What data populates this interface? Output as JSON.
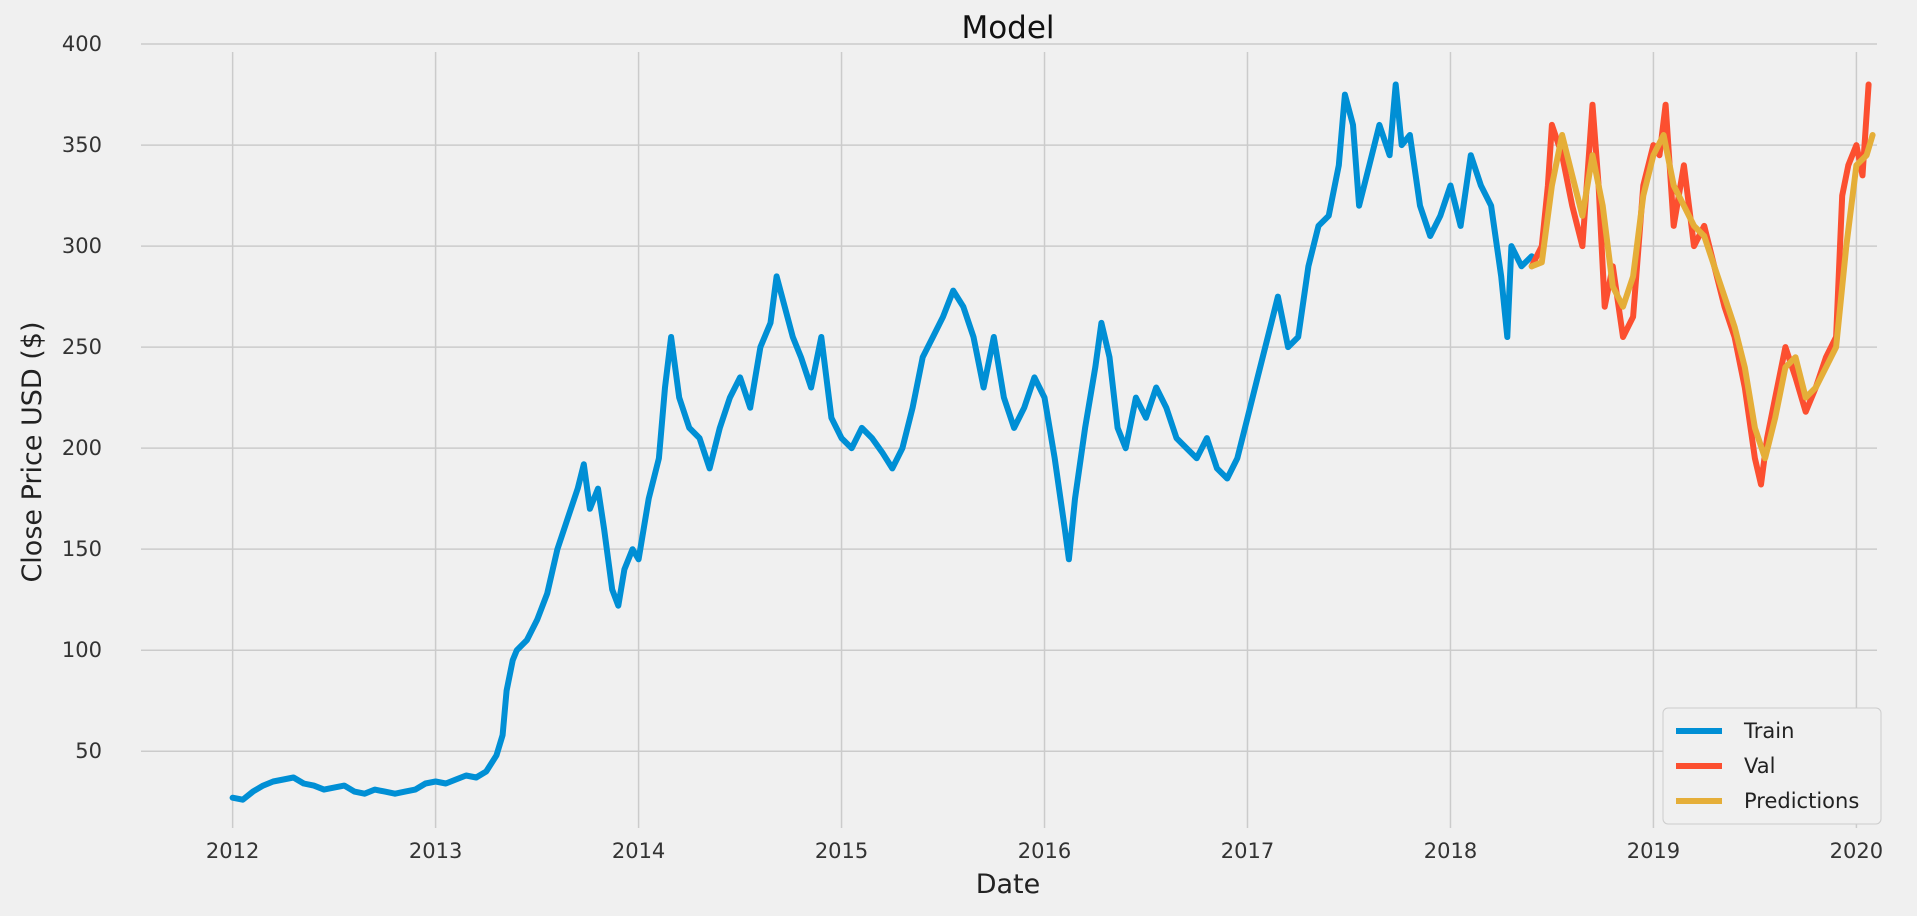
{
  "chart_data": {
    "type": "line",
    "title": "Model",
    "xlabel": "Date",
    "ylabel": "Close Price USD ($)",
    "xlim": [
      2011.45,
      2020.2
    ],
    "ylim": [
      12,
      403
    ],
    "x_ticks": [
      2012,
      2013,
      2014,
      2015,
      2016,
      2017,
      2018,
      2019,
      2020
    ],
    "x_tick_labels": [
      "2012",
      "2013",
      "2014",
      "2015",
      "2016",
      "2017",
      "2018",
      "2019",
      "2020"
    ],
    "y_ticks": [
      50,
      100,
      150,
      200,
      250,
      300,
      350,
      400
    ],
    "y_tick_labels": [
      "50",
      "100",
      "150",
      "200",
      "250",
      "300",
      "350",
      "400"
    ],
    "grid": true,
    "legend": "lower-right",
    "series": [
      {
        "name": "Train",
        "color": "#008fd5",
        "points": [
          [
            2012.0,
            27
          ],
          [
            2012.05,
            26
          ],
          [
            2012.1,
            30
          ],
          [
            2012.15,
            33
          ],
          [
            2012.2,
            35
          ],
          [
            2012.25,
            36
          ],
          [
            2012.3,
            37
          ],
          [
            2012.35,
            34
          ],
          [
            2012.4,
            33
          ],
          [
            2012.45,
            31
          ],
          [
            2012.5,
            32
          ],
          [
            2012.55,
            33
          ],
          [
            2012.6,
            30
          ],
          [
            2012.65,
            29
          ],
          [
            2012.7,
            31
          ],
          [
            2012.75,
            30
          ],
          [
            2012.8,
            29
          ],
          [
            2012.85,
            30
          ],
          [
            2012.9,
            31
          ],
          [
            2012.95,
            34
          ],
          [
            2013.0,
            35
          ],
          [
            2013.05,
            34
          ],
          [
            2013.1,
            36
          ],
          [
            2013.15,
            38
          ],
          [
            2013.2,
            37
          ],
          [
            2013.25,
            40
          ],
          [
            2013.3,
            48
          ],
          [
            2013.33,
            58
          ],
          [
            2013.35,
            80
          ],
          [
            2013.38,
            95
          ],
          [
            2013.4,
            100
          ],
          [
            2013.45,
            105
          ],
          [
            2013.5,
            115
          ],
          [
            2013.55,
            128
          ],
          [
            2013.6,
            150
          ],
          [
            2013.65,
            165
          ],
          [
            2013.7,
            180
          ],
          [
            2013.73,
            192
          ],
          [
            2013.76,
            170
          ],
          [
            2013.8,
            180
          ],
          [
            2013.83,
            160
          ],
          [
            2013.87,
            130
          ],
          [
            2013.9,
            122
          ],
          [
            2013.93,
            140
          ],
          [
            2013.97,
            150
          ],
          [
            2014.0,
            145
          ],
          [
            2014.05,
            175
          ],
          [
            2014.1,
            195
          ],
          [
            2014.13,
            230
          ],
          [
            2014.16,
            255
          ],
          [
            2014.2,
            225
          ],
          [
            2014.25,
            210
          ],
          [
            2014.3,
            205
          ],
          [
            2014.35,
            190
          ],
          [
            2014.4,
            210
          ],
          [
            2014.45,
            225
          ],
          [
            2014.5,
            235
          ],
          [
            2014.55,
            220
          ],
          [
            2014.6,
            250
          ],
          [
            2014.65,
            262
          ],
          [
            2014.68,
            285
          ],
          [
            2014.72,
            270
          ],
          [
            2014.76,
            255
          ],
          [
            2014.8,
            245
          ],
          [
            2014.85,
            230
          ],
          [
            2014.9,
            255
          ],
          [
            2014.95,
            215
          ],
          [
            2015.0,
            205
          ],
          [
            2015.05,
            200
          ],
          [
            2015.1,
            210
          ],
          [
            2015.15,
            205
          ],
          [
            2015.2,
            198
          ],
          [
            2015.25,
            190
          ],
          [
            2015.3,
            200
          ],
          [
            2015.35,
            220
          ],
          [
            2015.4,
            245
          ],
          [
            2015.45,
            255
          ],
          [
            2015.5,
            265
          ],
          [
            2015.55,
            278
          ],
          [
            2015.6,
            270
          ],
          [
            2015.65,
            255
          ],
          [
            2015.7,
            230
          ],
          [
            2015.75,
            255
          ],
          [
            2015.8,
            225
          ],
          [
            2015.85,
            210
          ],
          [
            2015.9,
            220
          ],
          [
            2015.95,
            235
          ],
          [
            2016.0,
            225
          ],
          [
            2016.05,
            195
          ],
          [
            2016.1,
            160
          ],
          [
            2016.12,
            145
          ],
          [
            2016.15,
            175
          ],
          [
            2016.2,
            210
          ],
          [
            2016.25,
            240
          ],
          [
            2016.28,
            262
          ],
          [
            2016.32,
            245
          ],
          [
            2016.36,
            210
          ],
          [
            2016.4,
            200
          ],
          [
            2016.45,
            225
          ],
          [
            2016.5,
            215
          ],
          [
            2016.55,
            230
          ],
          [
            2016.6,
            220
          ],
          [
            2016.65,
            205
          ],
          [
            2016.7,
            200
          ],
          [
            2016.75,
            195
          ],
          [
            2016.8,
            205
          ],
          [
            2016.85,
            190
          ],
          [
            2016.9,
            185
          ],
          [
            2016.95,
            195
          ],
          [
            2017.0,
            215
          ],
          [
            2017.05,
            235
          ],
          [
            2017.1,
            255
          ],
          [
            2017.15,
            275
          ],
          [
            2017.2,
            250
          ],
          [
            2017.25,
            255
          ],
          [
            2017.3,
            290
          ],
          [
            2017.35,
            310
          ],
          [
            2017.4,
            315
          ],
          [
            2017.45,
            340
          ],
          [
            2017.48,
            375
          ],
          [
            2017.52,
            360
          ],
          [
            2017.55,
            320
          ],
          [
            2017.6,
            340
          ],
          [
            2017.65,
            360
          ],
          [
            2017.7,
            345
          ],
          [
            2017.73,
            380
          ],
          [
            2017.76,
            350
          ],
          [
            2017.8,
            355
          ],
          [
            2017.85,
            320
          ],
          [
            2017.9,
            305
          ],
          [
            2017.95,
            315
          ],
          [
            2018.0,
            330
          ],
          [
            2018.05,
            310
          ],
          [
            2018.1,
            345
          ],
          [
            2018.15,
            330
          ],
          [
            2018.2,
            320
          ],
          [
            2018.25,
            285
          ],
          [
            2018.28,
            255
          ],
          [
            2018.3,
            300
          ],
          [
            2018.35,
            290
          ],
          [
            2018.4,
            295
          ]
        ]
      },
      {
        "name": "Val",
        "color": "#fc4f30",
        "points": [
          [
            2018.4,
            290
          ],
          [
            2018.45,
            300
          ],
          [
            2018.48,
            330
          ],
          [
            2018.5,
            360
          ],
          [
            2018.55,
            345
          ],
          [
            2018.6,
            320
          ],
          [
            2018.65,
            300
          ],
          [
            2018.7,
            370
          ],
          [
            2018.73,
            330
          ],
          [
            2018.76,
            270
          ],
          [
            2018.8,
            290
          ],
          [
            2018.85,
            255
          ],
          [
            2018.9,
            265
          ],
          [
            2018.95,
            330
          ],
          [
            2019.0,
            350
          ],
          [
            2019.03,
            345
          ],
          [
            2019.06,
            370
          ],
          [
            2019.1,
            310
          ],
          [
            2019.15,
            340
          ],
          [
            2019.2,
            300
          ],
          [
            2019.25,
            310
          ],
          [
            2019.3,
            290
          ],
          [
            2019.35,
            270
          ],
          [
            2019.4,
            255
          ],
          [
            2019.45,
            230
          ],
          [
            2019.5,
            195
          ],
          [
            2019.53,
            182
          ],
          [
            2019.56,
            205
          ],
          [
            2019.6,
            225
          ],
          [
            2019.65,
            250
          ],
          [
            2019.7,
            235
          ],
          [
            2019.75,
            218
          ],
          [
            2019.8,
            230
          ],
          [
            2019.85,
            245
          ],
          [
            2019.9,
            255
          ],
          [
            2019.93,
            325
          ],
          [
            2019.96,
            340
          ],
          [
            2020.0,
            350
          ],
          [
            2020.03,
            335
          ],
          [
            2020.06,
            380
          ]
        ]
      },
      {
        "name": "Predictions",
        "color": "#e5ae38",
        "points": [
          [
            2018.4,
            290
          ],
          [
            2018.45,
            292
          ],
          [
            2018.5,
            330
          ],
          [
            2018.55,
            355
          ],
          [
            2018.6,
            335
          ],
          [
            2018.65,
            315
          ],
          [
            2018.7,
            345
          ],
          [
            2018.75,
            320
          ],
          [
            2018.8,
            280
          ],
          [
            2018.85,
            270
          ],
          [
            2018.9,
            285
          ],
          [
            2018.95,
            325
          ],
          [
            2019.0,
            345
          ],
          [
            2019.05,
            355
          ],
          [
            2019.1,
            330
          ],
          [
            2019.15,
            320
          ],
          [
            2019.2,
            310
          ],
          [
            2019.25,
            305
          ],
          [
            2019.3,
            290
          ],
          [
            2019.35,
            275
          ],
          [
            2019.4,
            260
          ],
          [
            2019.45,
            240
          ],
          [
            2019.5,
            210
          ],
          [
            2019.55,
            195
          ],
          [
            2019.6,
            215
          ],
          [
            2019.65,
            240
          ],
          [
            2019.7,
            245
          ],
          [
            2019.75,
            225
          ],
          [
            2019.8,
            230
          ],
          [
            2019.85,
            240
          ],
          [
            2019.9,
            250
          ],
          [
            2019.95,
            300
          ],
          [
            2020.0,
            340
          ],
          [
            2020.05,
            345
          ],
          [
            2020.08,
            355
          ]
        ]
      }
    ]
  }
}
